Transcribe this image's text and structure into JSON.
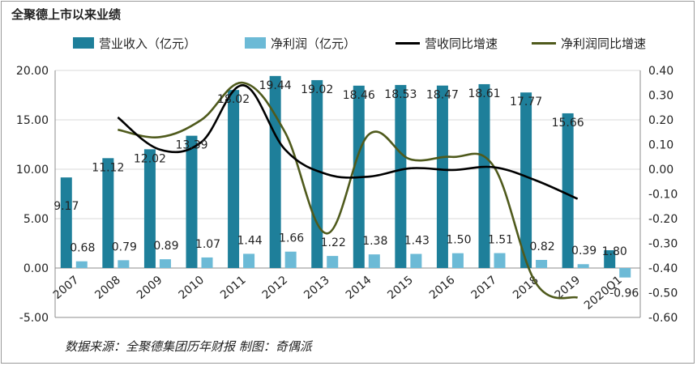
{
  "chart_data": {
    "type": "bar",
    "title": "全聚德上市以来业绩",
    "source": "数据来源：全聚德集团历年财报      制图：奇偶派",
    "categories": [
      "2007",
      "2008",
      "2009",
      "2010",
      "2011",
      "2012",
      "2013",
      "2014",
      "2015",
      "2016",
      "2017",
      "2018",
      "2019",
      "2020Q1"
    ],
    "left_axis": {
      "ylim": [
        -5,
        20
      ],
      "ticks": [
        "-5.00",
        "0.00",
        "5.00",
        "10.00",
        "15.00",
        "20.00"
      ]
    },
    "right_axis": {
      "ylim": [
        -0.6,
        0.4
      ],
      "ticks": [
        "-0.60",
        "-0.50",
        "-0.40",
        "-0.30",
        "-0.20",
        "-0.10",
        "0.00",
        "0.10",
        "0.20",
        "0.30",
        "0.40"
      ]
    },
    "series": [
      {
        "name": "营业收入（亿元）",
        "kind": "bar",
        "color": "#1e7f9a",
        "values": [
          9.17,
          11.12,
          12.02,
          13.39,
          18.02,
          19.44,
          19.02,
          18.46,
          18.53,
          18.47,
          18.61,
          17.77,
          15.66,
          1.8
        ],
        "labels": [
          "9.17",
          "11.12",
          "12.02",
          "13.39",
          "18.02",
          "19.44",
          "19.02",
          "18.46",
          "18.53",
          "18.47",
          "18.61",
          "17.77",
          "15.66",
          "1.80"
        ]
      },
      {
        "name": "净利润（亿元）",
        "kind": "bar",
        "color": "#6cbad6",
        "values": [
          0.68,
          0.79,
          0.89,
          1.07,
          1.44,
          1.66,
          1.22,
          1.38,
          1.43,
          1.5,
          1.51,
          0.82,
          0.39,
          -0.96
        ],
        "labels": [
          "0.68",
          "0.79",
          "0.89",
          "1.07",
          "1.44",
          "1.66",
          "1.22",
          "1.38",
          "1.43",
          "1.50",
          "1.51",
          "0.82",
          "0.39",
          "-0.96"
        ]
      },
      {
        "name": "营收同比增速",
        "kind": "line",
        "axis": "right",
        "color": "#000000",
        "values": [
          null,
          0.21,
          0.08,
          0.11,
          0.34,
          0.08,
          -0.02,
          -0.03,
          0.004,
          -0.003,
          0.008,
          -0.045,
          -0.12,
          null
        ]
      },
      {
        "name": "净利润同比增速",
        "kind": "line",
        "axis": "right",
        "color": "#4f5a1c",
        "values": [
          null,
          0.16,
          0.13,
          0.2,
          0.35,
          0.15,
          -0.26,
          0.14,
          0.04,
          0.05,
          0.01,
          -0.46,
          -0.52,
          null
        ]
      }
    ]
  }
}
